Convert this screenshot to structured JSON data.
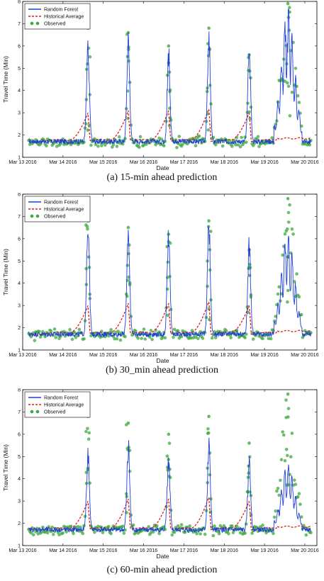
{
  "chart_data": [
    {
      "type": "line",
      "caption": "(a) 15-min ahead prediction",
      "xlabel": "Date",
      "ylabel": "Travel Time (Min)",
      "ylim": [
        1,
        8
      ],
      "yticks": [
        1,
        2,
        3,
        4,
        5,
        6,
        7,
        8
      ],
      "xlim": [
        13.0,
        20.3
      ],
      "xticks": [
        {
          "x": 13,
          "label": "Mar 13 2016"
        },
        {
          "x": 14,
          "label": "Mar 14 2016"
        },
        {
          "x": 15,
          "label": "Mar 15 2016"
        },
        {
          "x": 16,
          "label": "Mar 16 2016"
        },
        {
          "x": 17,
          "label": "Mar 17 2016"
        },
        {
          "x": 18,
          "label": "Mar 18 2016"
        },
        {
          "x": 19,
          "label": "Mar 19 2016"
        },
        {
          "x": 20,
          "label": "Mar 20 2016"
        }
      ],
      "grid": false,
      "legend_position": "top-left",
      "legend": [
        "Random Forest",
        "Historical Average",
        "Observed"
      ],
      "colors": {
        "rf": "#1f3fd6",
        "ha": "#e0201b",
        "obs": "#3caa3c"
      },
      "peaks": [
        {
          "x": 14.62,
          "rf": 6.0,
          "ha": 3.0,
          "obs": 6.8
        },
        {
          "x": 15.62,
          "rf": 5.9,
          "ha": 3.1,
          "obs": 6.6
        },
        {
          "x": 16.62,
          "rf": 5.5,
          "ha": 3.1,
          "obs": 6.0
        },
        {
          "x": 17.62,
          "rf": 6.3,
          "ha": 3.2,
          "obs": 6.8
        },
        {
          "x": 18.62,
          "rf": 5.6,
          "ha": 3.0,
          "obs": 5.6
        },
        {
          "x": 19.58,
          "rf": 7.7,
          "ha": 1.9,
          "obs": 7.9
        }
      ]
    },
    {
      "type": "line",
      "caption": "(b) 30_min ahead prediction",
      "xlabel": "Date",
      "ylabel": "Travel Time (Min)",
      "ylim": [
        1,
        8
      ],
      "yticks": [
        1,
        2,
        3,
        4,
        5,
        6,
        7,
        8
      ],
      "xlim": [
        13.0,
        20.3
      ],
      "xticks": [
        {
          "x": 13,
          "label": "Mar 13 2016"
        },
        {
          "x": 14,
          "label": "Mar 14 2016"
        },
        {
          "x": 15,
          "label": "Mar 15 2016"
        },
        {
          "x": 16,
          "label": "Mar 16 2016"
        },
        {
          "x": 17,
          "label": "Mar 17 2016"
        },
        {
          "x": 18,
          "label": "Mar 18 2016"
        },
        {
          "x": 19,
          "label": "Mar 19 2016"
        },
        {
          "x": 20,
          "label": "Mar 20 2016"
        }
      ],
      "grid": false,
      "legend_position": "top-left",
      "legend": [
        "Random Forest",
        "Historical Average",
        "Observed"
      ],
      "colors": {
        "rf": "#1f3fd6",
        "ha": "#e0201b",
        "obs": "#3caa3c"
      },
      "peaks": [
        {
          "x": 14.62,
          "rf": 6.6,
          "ha": 3.0,
          "obs": 6.8
        },
        {
          "x": 15.62,
          "rf": 6.3,
          "ha": 3.1,
          "obs": 6.5
        },
        {
          "x": 16.62,
          "rf": 6.1,
          "ha": 3.1,
          "obs": 6.2
        },
        {
          "x": 17.62,
          "rf": 6.7,
          "ha": 3.2,
          "obs": 6.8
        },
        {
          "x": 18.62,
          "rf": 5.6,
          "ha": 3.0,
          "obs": 5.5
        },
        {
          "x": 19.58,
          "rf": 6.2,
          "ha": 1.9,
          "obs": 7.8
        }
      ]
    },
    {
      "type": "line",
      "caption": "(c) 60-min ahead prediction",
      "xlabel": "Date",
      "ylabel": "Travel Time (Min)",
      "ylim": [
        1,
        8
      ],
      "yticks": [
        1,
        2,
        3,
        4,
        5,
        6,
        7,
        8
      ],
      "xlim": [
        13.0,
        20.3
      ],
      "xticks": [
        {
          "x": 13,
          "label": "Mar 13 2016"
        },
        {
          "x": 14,
          "label": "Mar 14 2016"
        },
        {
          "x": 15,
          "label": "Mar 15 2016"
        },
        {
          "x": 16,
          "label": "Mar 16 2016"
        },
        {
          "x": 17,
          "label": "Mar 17 2016"
        },
        {
          "x": 18,
          "label": "Mar 18 2016"
        },
        {
          "x": 19,
          "label": "Mar 19 2016"
        },
        {
          "x": 20,
          "label": "Mar 20 2016"
        }
      ],
      "grid": false,
      "legend_position": "top-left",
      "legend": [
        "Random Forest",
        "Historical Average",
        "Observed"
      ],
      "colors": {
        "rf": "#1f3fd6",
        "ha": "#e0201b",
        "obs": "#3caa3c"
      },
      "peaks": [
        {
          "x": 14.62,
          "rf": 5.1,
          "ha": 3.0,
          "obs": 6.8
        },
        {
          "x": 15.62,
          "rf": 5.4,
          "ha": 3.1,
          "obs": 6.5
        },
        {
          "x": 16.62,
          "rf": 4.7,
          "ha": 3.1,
          "obs": 6.0
        },
        {
          "x": 17.62,
          "rf": 5.3,
          "ha": 3.2,
          "obs": 6.8
        },
        {
          "x": 18.62,
          "rf": 4.6,
          "ha": 3.0,
          "obs": 5.6
        },
        {
          "x": 19.58,
          "rf": 4.7,
          "ha": 1.9,
          "obs": 7.8
        }
      ]
    }
  ]
}
